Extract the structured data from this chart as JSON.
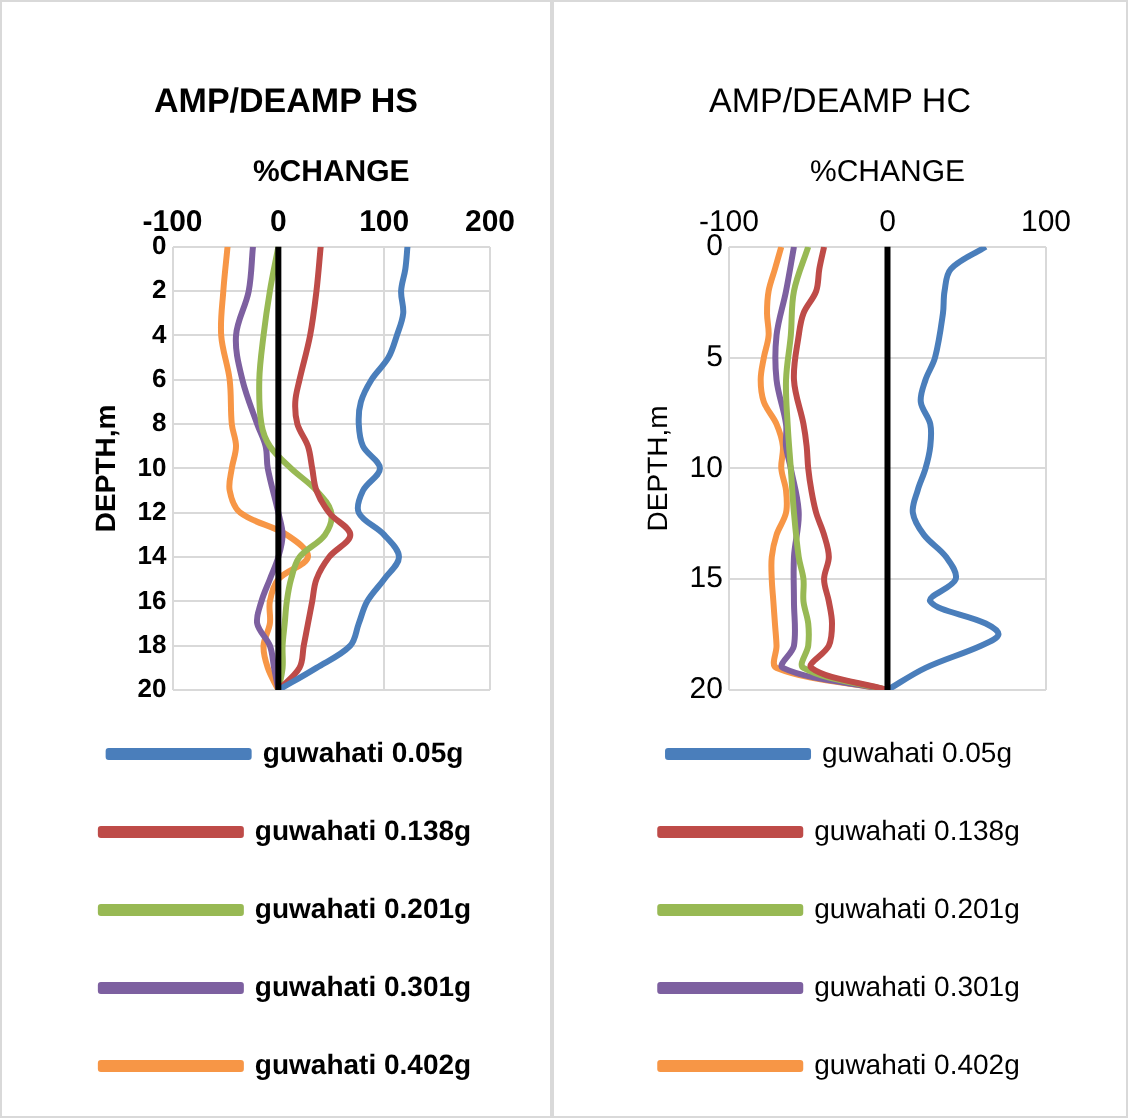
{
  "chart_data": [
    {
      "type": "line",
      "title": "AMP/DEAMP HS",
      "xlabel": "%CHANGE",
      "ylabel": "DEPTH,m",
      "xlim": [
        -100,
        200
      ],
      "xticks": [
        -100,
        0,
        100,
        200
      ],
      "ylim": [
        20,
        0
      ],
      "yticks": [
        0,
        2,
        4,
        6,
        8,
        10,
        12,
        14,
        16,
        18,
        20
      ],
      "grid": true,
      "legend": "bottom",
      "marker": "none",
      "ref_lines": [
        {
          "axis": "x",
          "value": 0,
          "color": "#000000"
        }
      ],
      "series": [
        {
          "name": "guwahati 0.05g",
          "color": "#4a7ebb",
          "x": [
            122,
            120,
            116,
            118,
            112,
            104,
            88,
            78,
            76,
            80,
            96,
            80,
            76,
            100,
            114,
            100,
            84,
            76,
            68,
            36,
            0
          ],
          "values": [
            0,
            1,
            2,
            3,
            4,
            5,
            6,
            7,
            8,
            9,
            10,
            11,
            12,
            13,
            14,
            15,
            16,
            17,
            18,
            19,
            20
          ]
        },
        {
          "name": "guwahati 0.138g",
          "color": "#be4b48",
          "x": [
            40,
            36,
            30,
            20,
            16,
            18,
            28,
            32,
            36,
            48,
            68,
            48,
            36,
            32,
            28,
            24,
            20,
            0
          ],
          "values": [
            0,
            2,
            4,
            6,
            7,
            8,
            9,
            10,
            11,
            12,
            13,
            14,
            15,
            16,
            17,
            18,
            19,
            20
          ]
        },
        {
          "name": "guwahati 0.201g",
          "color": "#98b954",
          "x": [
            0,
            -8,
            -14,
            -18,
            -16,
            -8,
            12,
            36,
            50,
            44,
            20,
            12,
            8,
            6,
            4,
            4,
            0
          ],
          "values": [
            0,
            2,
            4,
            6,
            8,
            9,
            10,
            11,
            12,
            13,
            14,
            15,
            16,
            17,
            18,
            19,
            20
          ]
        },
        {
          "name": "guwahati 0.301g",
          "color": "#7d60a0",
          "x": [
            -24,
            -28,
            -40,
            -34,
            -20,
            -12,
            -10,
            0,
            4,
            0,
            -8,
            -16,
            -20,
            -8,
            -4,
            0
          ],
          "values": [
            0,
            2,
            4,
            6,
            8,
            9,
            10,
            12,
            13,
            14,
            15,
            16,
            17,
            18,
            19,
            20
          ]
        },
        {
          "name": "guwahati 0.402g",
          "color": "#f79646",
          "x": [
            -48,
            -52,
            -54,
            -46,
            -44,
            -40,
            -44,
            -46,
            -36,
            8,
            28,
            0,
            -8,
            -8,
            -14,
            -10,
            0
          ],
          "values": [
            0,
            2,
            4,
            6,
            8,
            9,
            10,
            11,
            12,
            13,
            14,
            15,
            16,
            17,
            18,
            19,
            20
          ]
        }
      ]
    },
    {
      "type": "line",
      "title": "AMP/DEAMP HC",
      "xlabel": "%CHANGE",
      "ylabel": "DEPTH,m",
      "xlim": [
        -100,
        100
      ],
      "xticks": [
        -100,
        0,
        100
      ],
      "ylim": [
        20,
        0
      ],
      "yticks": [
        0,
        5,
        10,
        15,
        20
      ],
      "grid": true,
      "legend": "bottom",
      "marker": "none",
      "ref_lines": [
        {
          "axis": "x",
          "value": 0,
          "color": "#000000"
        }
      ],
      "series": [
        {
          "name": "guwahati 0.05g",
          "color": "#4a7ebb",
          "x": [
            62,
            40,
            36,
            35,
            30,
            24,
            21,
            27,
            27,
            24,
            19,
            16,
            23,
            37,
            43,
            27,
            62,
            70,
            59,
            24,
            0
          ],
          "values": [
            0,
            1,
            2,
            3,
            5,
            6,
            7,
            8,
            9,
            10,
            11,
            12,
            13,
            14,
            15,
            16,
            17,
            17.5,
            18,
            19,
            20
          ]
        },
        {
          "name": "guwahati 0.138g",
          "color": "#be4b48",
          "x": [
            -40,
            -43,
            -45,
            -53,
            -56,
            -59,
            -53,
            -51,
            -50,
            -48,
            -45,
            -40,
            -37,
            -40,
            -37,
            -35,
            -37,
            -48,
            0
          ],
          "values": [
            0,
            1,
            2,
            3,
            4,
            6,
            8,
            9,
            10,
            11,
            12,
            13,
            14,
            15,
            16,
            17,
            18,
            19,
            20
          ]
        },
        {
          "name": "guwahati 0.201g",
          "color": "#98b954",
          "x": [
            -50,
            -59,
            -61,
            -64,
            -63,
            -61,
            -59,
            -56,
            -53,
            -53,
            -50,
            -50,
            -53,
            0
          ],
          "values": [
            0,
            2,
            4,
            6,
            8,
            10,
            12,
            14,
            15,
            16,
            17,
            18,
            19,
            20
          ]
        },
        {
          "name": "guwahati 0.301g",
          "color": "#7d60a0",
          "x": [
            -59,
            -64,
            -70,
            -70,
            -64,
            -64,
            -61,
            -56,
            -59,
            -59,
            -59,
            -66,
            0
          ],
          "values": [
            0,
            2,
            4,
            6,
            8,
            9,
            10,
            12,
            14,
            16,
            18,
            19,
            20
          ]
        },
        {
          "name": "guwahati 0.402g",
          "color": "#f79646",
          "x": [
            -67,
            -71,
            -75,
            -76,
            -75,
            -78,
            -80,
            -78,
            -70,
            -66,
            -67,
            -64,
            -64,
            -70,
            -73,
            -73,
            -72,
            -71,
            -70,
            -70,
            0
          ],
          "values": [
            0,
            1,
            2,
            3,
            4,
            5,
            6,
            7,
            8,
            9,
            10,
            11,
            12,
            13,
            14,
            15,
            16,
            17,
            18,
            19,
            20
          ]
        }
      ]
    }
  ]
}
